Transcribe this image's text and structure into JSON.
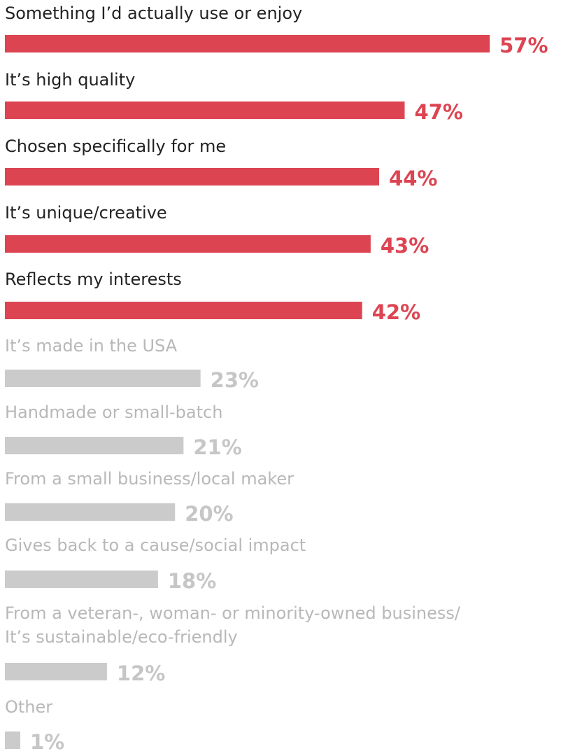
{
  "chart_data": {
    "type": "bar",
    "orientation": "horizontal",
    "categories": [
      "Something I’d actually use or enjoy",
      "It’s high quality",
      "Chosen specifically for me",
      "It’s unique/creative",
      "Reflects my interests",
      "It’s made in the USA",
      "Handmade or small-batch",
      "From a small business/local maker",
      "Gives back to a cause/social impact",
      "From a veteran-, woman- or minority-owned business/ It’s sustainable/eco-friendly",
      "Other"
    ],
    "values": [
      57,
      47,
      44,
      43,
      42,
      23,
      21,
      20,
      18,
      12,
      1
    ],
    "value_labels": [
      "57%",
      "47%",
      "44%",
      "43%",
      "42%",
      "23%",
      "21%",
      "20%",
      "18%",
      "12%",
      "1%"
    ],
    "highlighted": [
      true,
      true,
      true,
      true,
      true,
      false,
      false,
      false,
      false,
      false,
      false
    ],
    "title": "",
    "xlabel": "",
    "ylabel": "",
    "grid": false,
    "legend": "none"
  },
  "colors": {
    "highlight_bar": "#dd4452",
    "highlight_value": "#dd4452",
    "highlight_text": "#222222",
    "muted_bar": "#cbcbcb",
    "muted_value": "#c6c6c6",
    "muted_text": "#b8b8b8"
  }
}
